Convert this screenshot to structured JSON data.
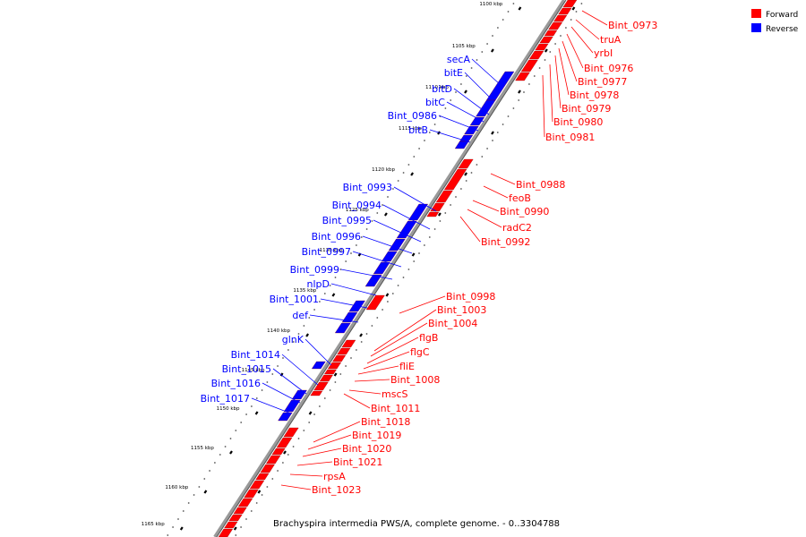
{
  "caption": "Brachyspira intermedia PWS/A, complete genome. - 0..3304788",
  "legend": [
    {
      "label": "Forward",
      "color": "#ff0000"
    },
    {
      "label": "Reverse",
      "color": "#0000ff"
    }
  ],
  "colors": {
    "forward": "#ff0000",
    "reverse": "#0000ff",
    "axis": "#999999"
  },
  "ticks": [
    "1100 kbp",
    "1105 kbp",
    "1110 kbp",
    "1115 kbp",
    "1120 kbp",
    "1125 kbp",
    "1130 kbp",
    "1135 kbp",
    "1140 kbp",
    "1145 kbp",
    "1150 kbp",
    "1155 kbp",
    "1160 kbp",
    "1165 kbp"
  ],
  "reverse_genes": [
    "secA",
    "bitE",
    "bitD",
    "bitC",
    "Bint_0986",
    "bitB",
    "Bint_0993",
    "Bint_0994",
    "Bint_0995",
    "Bint_0996",
    "Bint_0997",
    "Bint_0999",
    "nlpD",
    "Bint_1001",
    "def",
    "glnK",
    "Bint_1014",
    "Bint_1015",
    "Bint_1016",
    "Bint_1017"
  ],
  "forward_genes": [
    "Bint_0973",
    "truA",
    "yrbI",
    "Bint_0976",
    "Bint_0977",
    "Bint_0978",
    "Bint_0979",
    "Bint_0980",
    "Bint_0981",
    "Bint_0988",
    "feoB",
    "Bint_0990",
    "radC2",
    "Bint_0992",
    "Bint_0998",
    "Bint_1003",
    "Bint_1004",
    "flgB",
    "flgC",
    "fliE",
    "Bint_1008",
    "mscS",
    "Bint_1011",
    "Bint_1018",
    "Bint_1019",
    "Bint_1020",
    "Bint_1021",
    "rpsA",
    "Bint_1023"
  ]
}
